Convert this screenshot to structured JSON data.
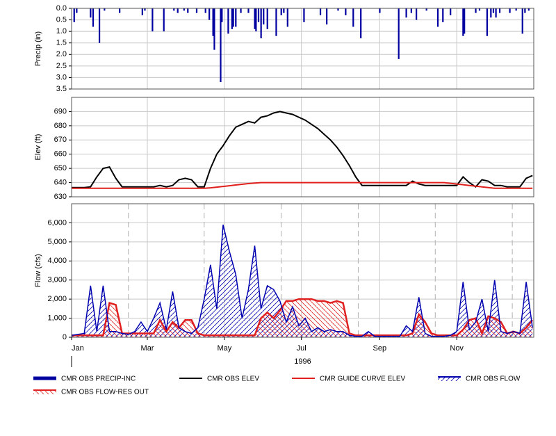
{
  "chart_data": [
    {
      "type": "bar",
      "ylabel": "Precip (in)",
      "y_inverted": true,
      "xlim": [
        1,
        367
      ],
      "ylim": [
        0,
        3.5
      ],
      "yticks": [
        {
          "value": 0,
          "label": "0.0"
        },
        0.5,
        {
          "value": 1,
          "label": "1.0"
        },
        1.5,
        {
          "value": 2,
          "label": "2.0"
        },
        2.5,
        {
          "value": 3,
          "label": "3.0"
        },
        3.5
      ],
      "grid": true,
      "x": [
        3,
        5,
        16,
        18,
        23,
        27,
        39,
        57,
        59,
        65,
        74,
        82,
        85,
        90,
        93,
        100,
        107,
        110,
        113,
        114,
        119,
        120,
        125,
        128,
        129,
        131,
        135,
        141,
        146,
        147,
        149,
        151,
        153,
        156,
        163,
        167,
        169,
        172,
        185,
        198,
        203,
        212,
        218,
        224,
        230,
        245,
        260,
        266,
        270,
        274,
        282,
        291,
        295,
        301,
        311,
        312,
        321,
        324,
        330,
        333,
        335,
        337,
        340,
        348,
        353,
        358,
        360,
        363
      ],
      "series": [
        {
          "name": "CMR OBS PRECIP-INC",
          "color": "#0000a0",
          "values": [
            0.6,
            0.2,
            0.4,
            0.8,
            1.5,
            0.1,
            0.2,
            0.3,
            0.1,
            1.0,
            1.0,
            0.1,
            0.2,
            0.1,
            0.2,
            0.2,
            0.2,
            0.5,
            1.2,
            1.8,
            3.2,
            0.6,
            1.1,
            0.9,
            0.8,
            0.8,
            0.2,
            0.2,
            0.9,
            1.0,
            0.6,
            1.3,
            0.7,
            0.9,
            1.2,
            0.3,
            0.2,
            0.8,
            0.6,
            0.3,
            0.7,
            0.1,
            0.3,
            0.8,
            1.3,
            0.2,
            2.2,
            0.4,
            0.2,
            0.5,
            0.1,
            0.8,
            0.6,
            0.3,
            1.2,
            1.1,
            0.2,
            0.1,
            1.2,
            0.4,
            0.2,
            0.4,
            0.2,
            0.2,
            0.1,
            1.1,
            0.2,
            0.1
          ]
        }
      ]
    },
    {
      "type": "line",
      "ylabel": "Elev (ft)",
      "xlim": [
        1,
        367
      ],
      "ylim": [
        630,
        700
      ],
      "yticks": [
        630,
        640,
        650,
        660,
        670,
        680,
        690
      ],
      "grid": true,
      "x": [
        1,
        6,
        11,
        16,
        21,
        26,
        31,
        36,
        41,
        46,
        51,
        56,
        61,
        66,
        71,
        76,
        81,
        86,
        91,
        96,
        101,
        106,
        111,
        116,
        121,
        126,
        131,
        136,
        141,
        146,
        151,
        156,
        161,
        166,
        171,
        176,
        181,
        186,
        191,
        196,
        201,
        206,
        211,
        216,
        221,
        226,
        231,
        236,
        241,
        246,
        251,
        256,
        261,
        266,
        271,
        276,
        281,
        286,
        291,
        296,
        301,
        306,
        311,
        316,
        321,
        326,
        331,
        336,
        341,
        346,
        351,
        356,
        361,
        366
      ],
      "series": [
        {
          "name": "CMR OBS ELEV",
          "color": "#000000",
          "values": [
            636.5,
            636.5,
            636.5,
            637,
            644,
            650,
            651,
            643,
            637,
            637,
            637,
            637,
            637,
            637,
            638,
            637,
            638,
            642,
            643,
            642,
            637,
            637,
            650,
            660,
            666,
            673,
            679,
            681,
            683,
            682,
            686,
            687,
            689,
            690,
            689,
            688,
            686,
            684,
            681,
            678,
            674,
            670,
            665,
            659,
            652,
            644,
            638,
            638,
            638,
            638,
            638,
            638,
            638,
            638,
            641,
            639,
            638,
            638,
            638,
            638,
            638,
            638,
            644,
            640,
            637,
            642,
            641,
            638,
            638,
            637,
            637,
            637,
            643,
            645
          ]
        },
        {
          "name": "CMR GUIDE CURVE ELEV",
          "color": "#e0201c",
          "values": [
            636,
            636,
            636,
            636,
            636,
            636,
            636,
            636,
            636,
            636,
            636,
            636,
            636,
            636,
            636,
            636,
            636,
            636,
            636,
            636,
            636,
            636,
            636.3,
            636.8,
            637.3,
            637.8,
            638.3,
            638.8,
            639.3,
            639.7,
            640,
            640,
            640,
            640,
            640,
            640,
            640,
            640,
            640,
            640,
            640,
            640,
            640,
            640,
            640,
            640,
            640,
            640,
            640,
            640,
            640,
            640,
            640,
            640,
            640,
            640,
            640,
            640,
            640,
            640,
            639.5,
            639,
            638.5,
            638,
            637.5,
            637,
            636.5,
            636,
            636,
            636,
            636,
            636,
            636,
            636
          ]
        }
      ]
    },
    {
      "type": "area",
      "ylabel": "Flow (cfs)",
      "xlabel": "1996",
      "xlim": [
        1,
        367
      ],
      "ylim": [
        0,
        7000
      ],
      "xticks": [
        {
          "value": 1,
          "label": "Jan"
        },
        {
          "value": 61,
          "label": "Mar"
        },
        {
          "value": 122,
          "label": "May"
        },
        {
          "value": 183,
          "label": "Jul"
        },
        {
          "value": 245,
          "label": "Sep"
        },
        {
          "value": 306,
          "label": "Nov"
        }
      ],
      "xminorticks": [
        46,
        106,
        167,
        228,
        289,
        350
      ],
      "yticks": [
        0,
        {
          "value": 1000,
          "label": "1,000"
        },
        {
          "value": 2000,
          "label": "2,000"
        },
        {
          "value": 3000,
          "label": "3,000"
        },
        {
          "value": 4000,
          "label": "4,000"
        },
        {
          "value": 5000,
          "label": "5,000"
        },
        {
          "value": 6000,
          "label": "6,000"
        }
      ],
      "grid": true,
      "x": [
        1,
        6,
        11,
        16,
        21,
        26,
        31,
        36,
        41,
        46,
        51,
        56,
        61,
        66,
        71,
        76,
        81,
        86,
        91,
        96,
        101,
        106,
        111,
        116,
        121,
        126,
        131,
        136,
        141,
        146,
        151,
        156,
        161,
        166,
        171,
        176,
        181,
        186,
        191,
        196,
        201,
        206,
        211,
        216,
        221,
        226,
        231,
        236,
        241,
        246,
        251,
        256,
        261,
        266,
        271,
        276,
        281,
        286,
        291,
        296,
        301,
        306,
        311,
        316,
        321,
        326,
        331,
        336,
        341,
        346,
        351,
        356,
        361,
        366
      ],
      "series": [
        {
          "name": "CMR OBS FLOW",
          "color": "#0000b0",
          "values": [
            100,
            150,
            200,
            2700,
            300,
            2700,
            300,
            300,
            200,
            150,
            300,
            800,
            300,
            1000,
            1800,
            400,
            2400,
            500,
            300,
            200,
            500,
            2000,
            3800,
            1500,
            5900,
            4500,
            3300,
            1000,
            2500,
            4800,
            1500,
            2700,
            2500,
            1900,
            800,
            1600,
            600,
            1000,
            300,
            500,
            300,
            400,
            300,
            300,
            100,
            50,
            50,
            300,
            50,
            50,
            50,
            50,
            50,
            600,
            300,
            2100,
            200,
            50,
            50,
            50,
            100,
            300,
            2900,
            400,
            800,
            2000,
            300,
            3000,
            300,
            200,
            300,
            200,
            2900,
            500
          ]
        },
        {
          "name": "CMR OBS FLOW-RES OUT",
          "color": "#e02020",
          "values": [
            100,
            100,
            100,
            100,
            100,
            100,
            1800,
            1700,
            200,
            200,
            200,
            200,
            200,
            200,
            900,
            300,
            800,
            500,
            900,
            900,
            200,
            100,
            100,
            100,
            100,
            100,
            100,
            100,
            100,
            100,
            1000,
            1300,
            1000,
            1400,
            1900,
            1900,
            2000,
            2000,
            2000,
            1900,
            1900,
            1800,
            1900,
            1800,
            200,
            100,
            100,
            100,
            100,
            100,
            100,
            100,
            100,
            100,
            200,
            1200,
            800,
            200,
            100,
            100,
            100,
            100,
            400,
            900,
            1000,
            200,
            1100,
            1000,
            800,
            200,
            300,
            200,
            500,
            900
          ]
        }
      ]
    }
  ]
}
